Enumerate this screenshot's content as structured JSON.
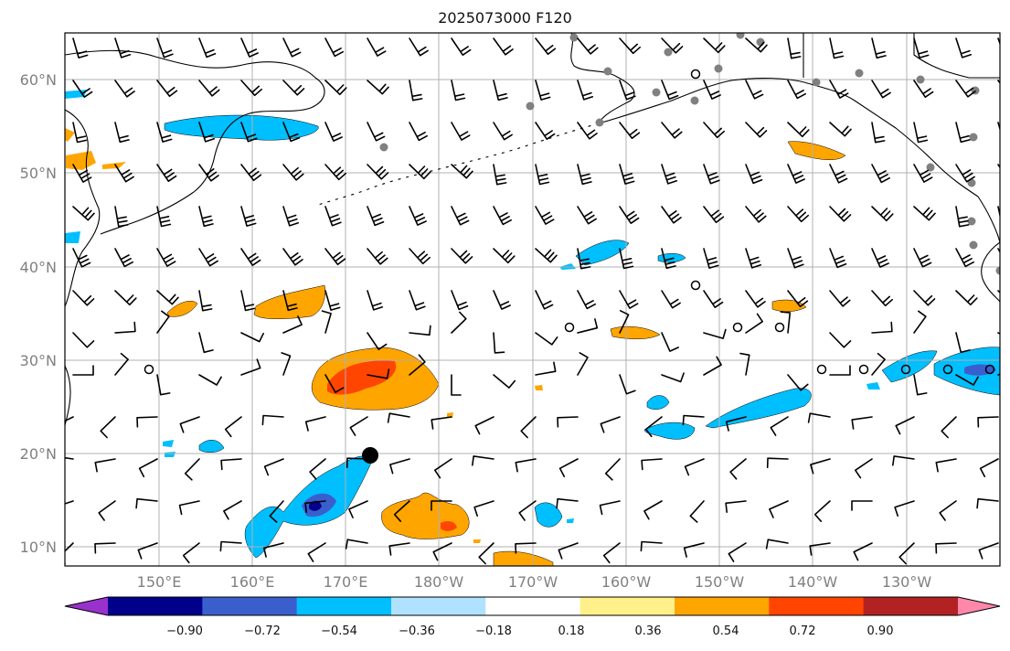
{
  "title": "2025073000 F120",
  "map": {
    "lat_labels": [
      "60°N",
      "50°N",
      "40°N",
      "30°N",
      "20°N",
      "10°N"
    ],
    "lon_labels": [
      "150°E",
      "160°E",
      "170°E",
      "180°W",
      "170°W",
      "160°W",
      "150°W",
      "140°W",
      "130°W"
    ]
  },
  "colorbar": {
    "tick_labels": [
      "−0.90",
      "−0.72",
      "−0.54",
      "−0.36",
      "−0.18",
      "0.18",
      "0.36",
      "0.54",
      "0.72",
      "0.90"
    ],
    "colors": [
      "#9932cc",
      "#00008b",
      "#3a5fcd",
      "#00bfff",
      "#b0e2ff",
      "#ffffff",
      "#fff08a",
      "#ffa500",
      "#ff4500",
      "#b22222",
      "#ff88aa"
    ]
  },
  "fill_colors": {
    "light_blue": "#b0e2ff",
    "blue": "#00bfff",
    "mid_blue": "#3a5fcd",
    "yellow": "#fff08a",
    "orange": "#ffa500",
    "red_orange": "#ff4500"
  },
  "markers": {
    "station_color": "#808080",
    "calm_color": "#000000",
    "storm_color": "#000000"
  }
}
